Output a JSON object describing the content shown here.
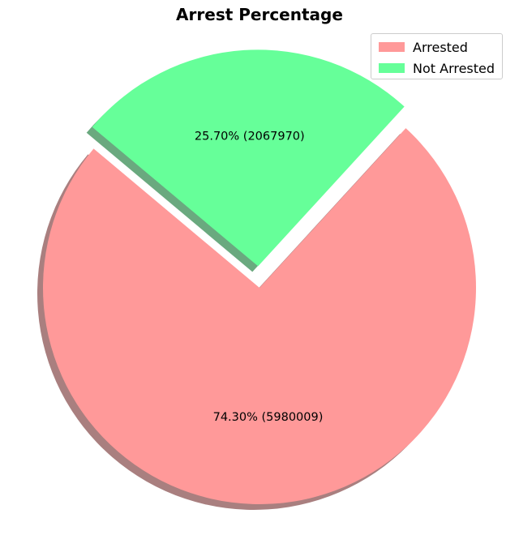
{
  "chart_data": {
    "type": "pie",
    "title": "Arrest Percentage",
    "slices": [
      {
        "name": "Arrested",
        "value": 5980009,
        "percent": 74.3,
        "label": "74.30%  (5980009)",
        "color": "#ff9999",
        "explode": 0
      },
      {
        "name": "Not Arrested",
        "value": 2067970,
        "percent": 25.7,
        "label": "25.70%  (2067970)",
        "color": "#66ff99",
        "explode": 0.1
      }
    ],
    "start_angle": 140,
    "shadow": true,
    "legend": {
      "placement": "top-right",
      "entries": [
        "Arrested",
        "Not Arrested"
      ]
    }
  }
}
